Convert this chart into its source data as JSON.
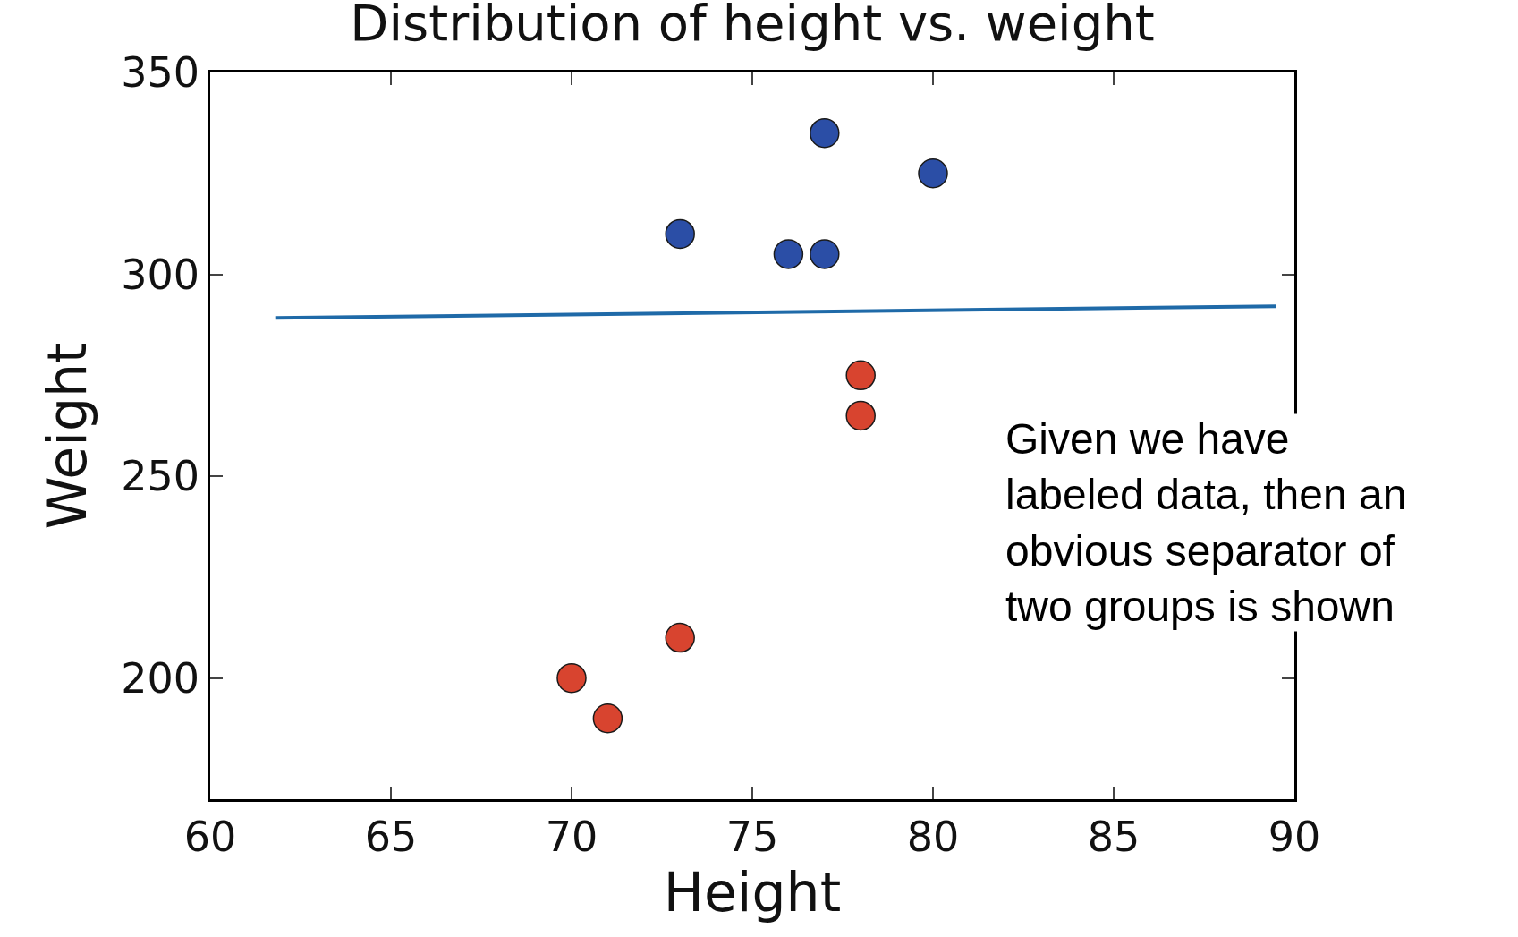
{
  "chart_data": {
    "type": "scatter",
    "title": "Distribution of height vs. weight",
    "xlabel": "Height",
    "ylabel": "Weight",
    "series": [
      {
        "color": "#2b4ea6",
        "marker": "circle",
        "x": [
          77,
          80,
          73,
          76,
          77
        ],
        "values": [
          335,
          325,
          310,
          305,
          305
        ]
      },
      {
        "color": "#d8442f",
        "marker": "circle",
        "x": [
          78,
          78,
          73,
          70,
          71
        ],
        "values": [
          275,
          265,
          210,
          200,
          190
        ]
      },
      {
        "type": "line",
        "color": "#1f6aa8",
        "x": [
          61.8,
          89.5
        ],
        "values": [
          289.2,
          292.1
        ]
      }
    ],
    "xlim": [
      60,
      90
    ],
    "xticks": [
      60,
      65,
      70,
      75,
      80,
      85,
      90
    ],
    "ylim": [
      170,
      350
    ],
    "yticks": [
      200,
      250,
      300,
      350
    ],
    "annotations": [
      "Given we have\nlabeled data, then an\nobvious separator of\ntwo groups is shown"
    ]
  }
}
